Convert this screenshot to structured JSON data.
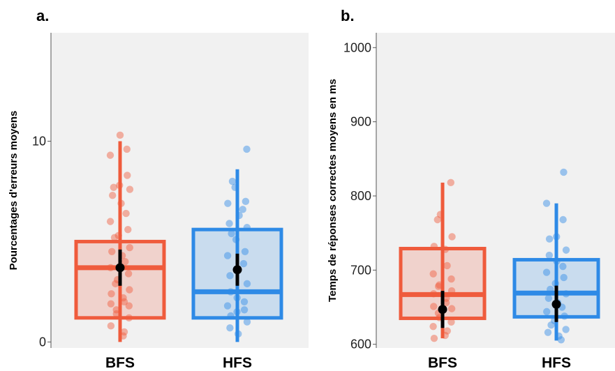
{
  "chart_data": [
    {
      "panel_label": "a.",
      "type": "box",
      "ylabel": "Pourcentages d'erreurs moyens",
      "ylim": [
        -0.3,
        15.4
      ],
      "yticks": [
        0,
        10
      ],
      "ytick_labels": [
        "0",
        "10"
      ],
      "categories": [
        "BFS",
        "HFS"
      ],
      "colors": [
        "#EF5B3C",
        "#2E8AE6"
      ],
      "boxes": [
        {
          "category": "BFS",
          "q1": 1.2,
          "median": 3.7,
          "q3": 5.0,
          "whisker_low": 0.0,
          "whisker_high": 10.0,
          "mean": 3.7,
          "ci_low": 2.8,
          "ci_high": 4.6
        },
        {
          "category": "HFS",
          "q1": 1.2,
          "median": 2.5,
          "q3": 5.6,
          "whisker_low": 0.0,
          "whisker_high": 8.6,
          "mean": 3.6,
          "ci_low": 2.8,
          "ci_high": 4.4
        }
      ],
      "points": [
        [
          10.3,
          9.6,
          9.3,
          8.3,
          7.8,
          7.7,
          7.6,
          7.3,
          6.9,
          6.4,
          6.0,
          5.6,
          5.3,
          5.2,
          4.7,
          4.5,
          4.3,
          4.0,
          3.7,
          3.4,
          3.1,
          2.9,
          2.6,
          2.4,
          2.2,
          2.0,
          1.9,
          1.8,
          1.6,
          1.4,
          1.2,
          0.8,
          0.5,
          0.3
        ],
        [
          9.6,
          8.0,
          7.7,
          7.0,
          6.9,
          6.6,
          6.3,
          5.9,
          5.7,
          5.4,
          5.1,
          4.5,
          4.3,
          3.9,
          3.6,
          3.3,
          2.9,
          2.5,
          2.2,
          2.0,
          1.8,
          1.6,
          1.5,
          1.3,
          1.0,
          0.7,
          0.4
        ]
      ]
    },
    {
      "panel_label": "b.",
      "type": "box",
      "ylabel": "Temps de réponses correctes moyens en ms",
      "ylim": [
        595,
        1020
      ],
      "yticks": [
        600,
        700,
        800,
        900,
        1000
      ],
      "ytick_labels": [
        "600",
        "700",
        "800",
        "900",
        "1000"
      ],
      "categories": [
        "BFS",
        "HFS"
      ],
      "colors": [
        "#EF5B3C",
        "#2E8AE6"
      ],
      "boxes": [
        {
          "category": "BFS",
          "q1": 635,
          "median": 667,
          "q3": 729,
          "whisker_low": 608,
          "whisker_high": 818,
          "mean": 647,
          "ci_low": 622,
          "ci_high": 672
        },
        {
          "category": "HFS",
          "q1": 637,
          "median": 669,
          "q3": 714,
          "whisker_low": 605,
          "whisker_high": 790,
          "mean": 654,
          "ci_low": 630,
          "ci_high": 679
        }
      ],
      "points": [
        [
          818,
          775,
          768,
          745,
          732,
          728,
          706,
          695,
          688,
          680,
          678,
          672,
          668,
          662,
          656,
          651,
          648,
          642,
          636,
          630,
          624,
          618,
          612,
          608
        ],
        [
          832,
          790,
          768,
          745,
          742,
          727,
          720,
          712,
          705,
          697,
          690,
          682,
          674,
          668,
          662,
          656,
          650,
          644,
          638,
          632,
          626,
          620,
          616,
          611,
          606
        ]
      ]
    }
  ]
}
